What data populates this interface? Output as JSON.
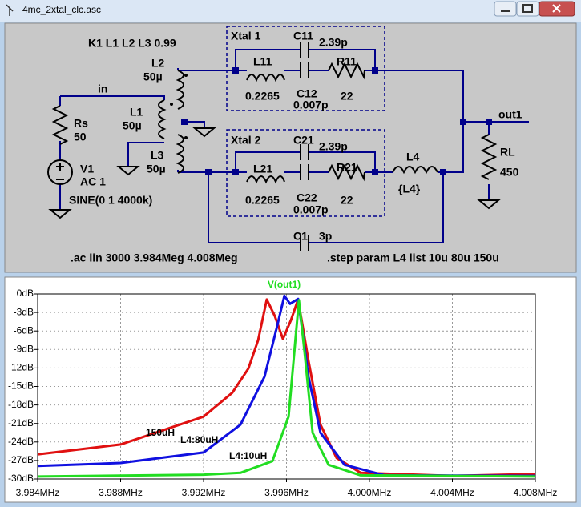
{
  "window": {
    "title": "4mc_2xtal_clc.asc"
  },
  "schematic": {
    "labels": [
      "K1 L1 L2 L3 0.99",
      "Xtal 1",
      "C11",
      "2.39p",
      "L11",
      "R11",
      "0.2265",
      "C12",
      "0.007p",
      "22",
      "in",
      "L2",
      "50µ",
      "L1",
      "50µ",
      "Rs",
      "50",
      "V1",
      "AC 1",
      "SINE(0 1 4000k)",
      "L3",
      "50µ",
      "Xtal 2",
      "C21",
      "2.39p",
      "L21",
      "R21",
      "0.2265",
      "C22",
      "0.007p",
      "22",
      "L4",
      "{L4}",
      "out1",
      "RL",
      "450",
      "C1",
      "3p",
      ".ac lin 3000 3.984Meg 4.008Meg",
      ".step param L4 list 10u 80u 150u"
    ]
  },
  "chart_data": {
    "type": "line",
    "title": "V(out1)",
    "title_color": "#22dd22",
    "xlim": [
      3.984,
      4.008
    ],
    "xticks": [
      {
        "value": 3.984,
        "label": "3.984MHz"
      },
      {
        "value": 3.988,
        "label": "3.988MHz"
      },
      {
        "value": 3.992,
        "label": "3.992MHz"
      },
      {
        "value": 3.996,
        "label": "3.996MHz"
      },
      {
        "value": 4.0,
        "label": "4.000MHz"
      },
      {
        "value": 4.004,
        "label": "4.004MHz"
      },
      {
        "value": 4.008,
        "label": "4.008MHz"
      }
    ],
    "ylim": [
      -30,
      0
    ],
    "yticks": [
      {
        "value": 0,
        "label": "0dB"
      },
      {
        "value": -3,
        "label": "-3dB"
      },
      {
        "value": -6,
        "label": "-6dB"
      },
      {
        "value": -9,
        "label": "-9dB"
      },
      {
        "value": -12,
        "label": "-12dB"
      },
      {
        "value": -15,
        "label": "-15dB"
      },
      {
        "value": -18,
        "label": "-18dB"
      },
      {
        "value": -21,
        "label": "-21dB"
      },
      {
        "value": -24,
        "label": "-24dB"
      },
      {
        "value": -27,
        "label": "-27dB"
      },
      {
        "value": -30,
        "label": "-30dB"
      }
    ],
    "grid": true,
    "series": [
      {
        "name": "150uH",
        "color": "#e01010",
        "x": [
          3.984,
          3.988,
          3.992,
          3.99339,
          3.99416,
          3.99463,
          3.99505,
          3.99544,
          3.99583,
          3.99621,
          3.99656,
          3.99706,
          3.99764,
          3.99842,
          3.99958,
          4.004,
          4.008
        ],
        "values": [
          -26.0,
          -24.4,
          -19.9,
          -16.0,
          -12.1,
          -7.5,
          -0.9,
          -3.6,
          -7.3,
          -4.3,
          -0.9,
          -10.8,
          -21.2,
          -26.6,
          -29.0,
          -29.5,
          -29.2
        ]
      },
      {
        "name": "L4:80uH",
        "color": "#1010e0",
        "x": [
          3.984,
          3.988,
          3.992,
          3.99378,
          3.99494,
          3.99552,
          3.9959,
          3.99617,
          3.99656,
          3.99706,
          3.99764,
          3.9988,
          4.00074,
          4.008
        ],
        "values": [
          -27.9,
          -27.4,
          -25.7,
          -21.2,
          -13.4,
          -5.6,
          -0.3,
          -1.6,
          -0.8,
          -13.4,
          -22.5,
          -27.7,
          -29.4,
          -29.5
        ]
      },
      {
        "name": "L4:10uH",
        "color": "#22dd22",
        "x": [
          3.984,
          3.992,
          3.99378,
          3.99532,
          3.9961,
          3.99641,
          3.9966,
          3.99687,
          3.99726,
          3.99803,
          3.99958,
          4.008
        ],
        "values": [
          -29.6,
          -29.3,
          -29.0,
          -27.1,
          -19.9,
          -8.2,
          -1.0,
          -9.4,
          -22.5,
          -27.7,
          -29.4,
          -29.6
        ]
      }
    ]
  }
}
